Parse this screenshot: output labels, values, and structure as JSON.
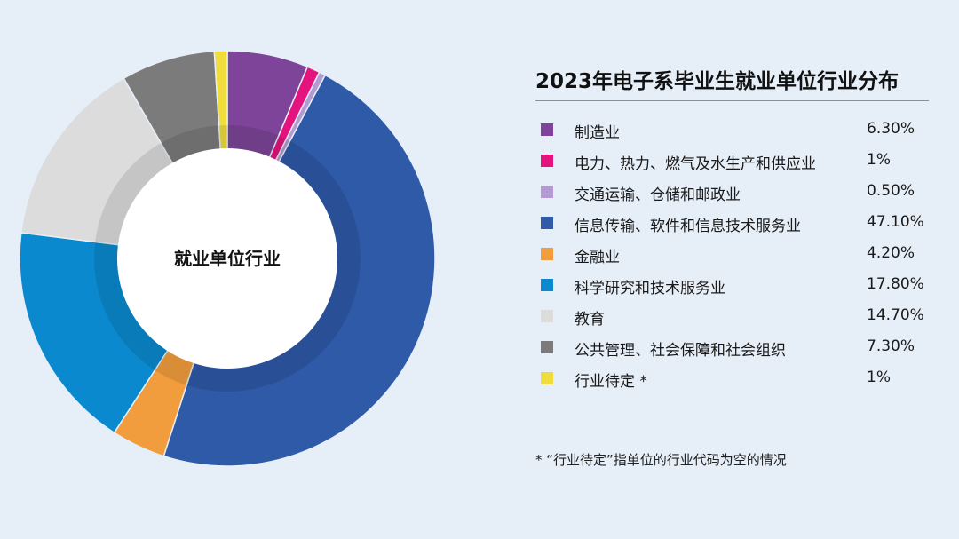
{
  "chart_data": {
    "type": "pie",
    "title": "2023年电子系毕业生就业单位行业分布",
    "center_label": "就业单位行业",
    "categories": [
      "制造业",
      "电力、热力、燃气及水生产和供应业",
      "交通运输、仓储和邮政业",
      "信息传输、软件和信息技术服务业",
      "金融业",
      "科学研究和技术服务业",
      "教育",
      "公共管理、社会保障和社会组织",
      "行业待定 *"
    ],
    "values": [
      6.3,
      1,
      0.5,
      47.1,
      4.2,
      17.8,
      14.7,
      7.3,
      1
    ],
    "value_labels": [
      "6.30%",
      "1%",
      "0.50%",
      "47.10%",
      "4.20%",
      "17.80%",
      "14.70%",
      "7.30%",
      "1%"
    ],
    "colors": [
      "#7d4499",
      "#e5137e",
      "#b39ad0",
      "#2e5aa8",
      "#f19d3d",
      "#0b89cf",
      "#dcdcdc",
      "#7b7b7b",
      "#f0dd3c"
    ],
    "legend_position": "right"
  },
  "footnote": "* “行业待定”指单位的行业代码为空的情况"
}
